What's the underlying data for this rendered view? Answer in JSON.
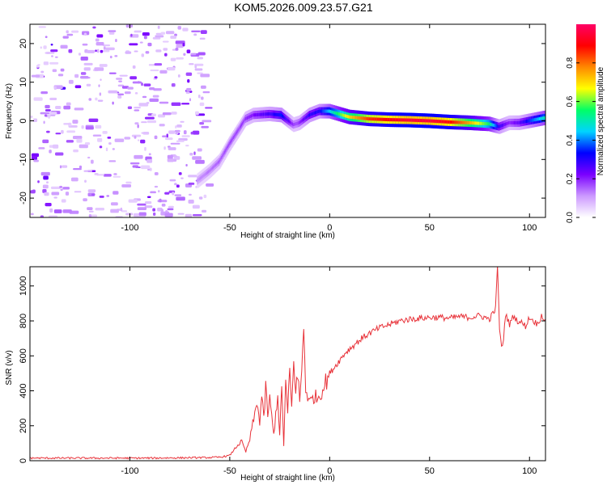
{
  "title": "KOM5.2026.009.23.57.G21",
  "chart_data": [
    {
      "type": "heatmap",
      "name": "spectrogram",
      "xlabel": "Height of straight line (km)",
      "ylabel": "Frequency (Hz)",
      "xlim": [
        -150,
        108
      ],
      "ylim": [
        -25,
        25
      ],
      "xticks": [
        -100,
        -50,
        0,
        50,
        100
      ],
      "yticks": [
        -20,
        -10,
        0,
        10,
        20
      ],
      "colorbar": {
        "label": "Normalized spectral amplitude",
        "range": [
          0,
          1
        ],
        "ticks": [
          0.0,
          0.2,
          0.4,
          0.6,
          0.8
        ],
        "colors": [
          "#ffffff",
          "#cc99ff",
          "#7a00ff",
          "#0000ff",
          "#00d4ff",
          "#00ff66",
          "#ffff00",
          "#ff8800",
          "#ff0000",
          "#ff0066"
        ]
      },
      "trace": {
        "x": [
          -66,
          -60,
          -55,
          -50,
          -45,
          -42,
          -38,
          -30,
          -24,
          -18,
          -15,
          -10,
          -5,
          0,
          10,
          20,
          30,
          40,
          50,
          60,
          70,
          80,
          85,
          90,
          95,
          100,
          108
        ],
        "y": [
          -15.5,
          -13,
          -10.5,
          -6,
          -2,
          0.5,
          1.5,
          1.8,
          1.5,
          -1.0,
          -0.5,
          1.5,
          2.5,
          2.5,
          1.0,
          0.5,
          0.3,
          0.2,
          0.0,
          -0.3,
          -0.5,
          -0.8,
          -1.5,
          -0.5,
          -0.5,
          0.0,
          0.8
        ],
        "amplitude": [
          0.12,
          0.14,
          0.16,
          0.18,
          0.18,
          0.2,
          0.22,
          0.28,
          0.35,
          0.18,
          0.2,
          0.3,
          0.32,
          0.45,
          0.7,
          0.85,
          0.9,
          0.95,
          0.95,
          0.9,
          0.75,
          0.55,
          0.3,
          0.2,
          0.25,
          0.35,
          0.5
        ]
      }
    },
    {
      "type": "line",
      "name": "snr",
      "xlabel": "Height of straight line (km)",
      "ylabel": "SNR (v/v)",
      "xlim": [
        -150,
        108
      ],
      "ylim": [
        0,
        1110
      ],
      "xticks": [
        -100,
        -50,
        0,
        50,
        100
      ],
      "yticks": [
        0,
        200,
        400,
        600,
        800,
        1000
      ],
      "color": "#e8333a",
      "series": [
        {
          "name": "SNR",
          "x": [
            -150,
            -120,
            -90,
            -60,
            -55,
            -50,
            -48,
            -46,
            -44,
            -42,
            -40,
            -38,
            -36,
            -35,
            -34,
            -33,
            -32,
            -31,
            -30,
            -28,
            -26,
            -25,
            -24,
            -23,
            -22,
            -21,
            -20,
            -19,
            -18,
            -17,
            -16,
            -15,
            -14,
            -13,
            -12,
            -11,
            -10,
            -8,
            -6,
            -4,
            -2,
            0,
            4,
            8,
            12,
            16,
            20,
            25,
            30,
            35,
            40,
            45,
            50,
            55,
            60,
            65,
            70,
            75,
            80,
            83,
            84,
            85,
            86,
            87,
            88,
            90,
            92,
            94,
            96,
            98,
            100,
            102,
            104,
            106,
            108
          ],
          "y": [
            15,
            15,
            15,
            18,
            20,
            30,
            60,
            90,
            110,
            50,
            120,
            240,
            340,
            200,
            390,
            230,
            420,
            260,
            350,
            150,
            380,
            140,
            420,
            90,
            450,
            260,
            520,
            300,
            560,
            420,
            480,
            350,
            500,
            770,
            420,
            370,
            330,
            370,
            360,
            400,
            450,
            500,
            560,
            620,
            660,
            700,
            730,
            760,
            780,
            800,
            810,
            815,
            820,
            820,
            815,
            825,
            820,
            830,
            810,
            870,
            1110,
            760,
            640,
            700,
            840,
            780,
            830,
            800,
            790,
            770,
            820,
            800,
            780,
            830,
            810
          ]
        }
      ]
    }
  ]
}
